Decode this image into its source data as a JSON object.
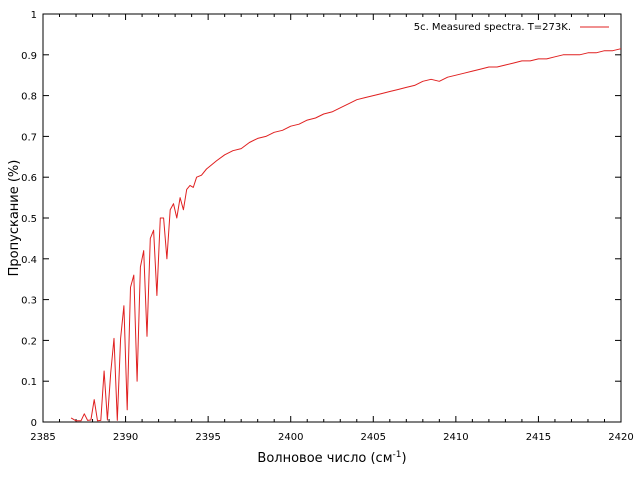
{
  "chart_data": {
    "type": "line",
    "xlabel": "Волновое число (см",
    "xlabel_sup": "-1",
    "xlabel_tail": ")",
    "ylabel": "Пропускание (%)",
    "xlim": [
      2385,
      2420
    ],
    "ylim": [
      0,
      1
    ],
    "xticks": [
      "2385",
      "2390",
      "2395",
      "2400",
      "2405",
      "2410",
      "2415",
      "2420"
    ],
    "yticks": [
      "0",
      "0.1",
      "0.2",
      "0.3",
      "0.4",
      "0.5",
      "0.6",
      "0.7",
      "0.8",
      "0.9",
      "1"
    ],
    "grid": false,
    "legend_position": "top-right",
    "series": [
      {
        "name": "5c. Measured spectra. T=273K.",
        "color": "#e02020",
        "x": [
          2386.7,
          2387.0,
          2387.3,
          2387.5,
          2387.7,
          2387.9,
          2388.1,
          2388.3,
          2388.5,
          2388.7,
          2388.9,
          2389.1,
          2389.3,
          2389.5,
          2389.7,
          2389.9,
          2390.1,
          2390.3,
          2390.5,
          2390.7,
          2390.9,
          2391.1,
          2391.3,
          2391.5,
          2391.7,
          2391.9,
          2392.1,
          2392.3,
          2392.5,
          2392.7,
          2392.9,
          2393.1,
          2393.3,
          2393.5,
          2393.7,
          2393.9,
          2394.1,
          2394.3,
          2394.6,
          2394.9,
          2395.2,
          2395.5,
          2396.0,
          2396.5,
          2397.0,
          2397.5,
          2398.0,
          2398.5,
          2399.0,
          2399.5,
          2400.0,
          2400.5,
          2401.0,
          2401.5,
          2402.0,
          2402.5,
          2403.0,
          2403.5,
          2404.0,
          2404.5,
          2405.0,
          2405.5,
          2406.0,
          2406.5,
          2407.0,
          2407.5,
          2408.0,
          2408.5,
          2409.0,
          2409.5,
          2410.0,
          2410.5,
          2411.0,
          2411.5,
          2412.0,
          2412.5,
          2413.0,
          2413.5,
          2414.0,
          2414.5,
          2415.0,
          2415.5,
          2416.0,
          2416.5,
          2417.0,
          2417.5,
          2418.0,
          2418.5,
          2419.0,
          2419.5,
          2420.0
        ],
        "y": [
          0.01,
          0.003,
          0.003,
          0.02,
          0.004,
          0.005,
          0.055,
          0.003,
          0.004,
          0.125,
          0.005,
          0.12,
          0.205,
          0.004,
          0.205,
          0.285,
          0.03,
          0.33,
          0.36,
          0.1,
          0.38,
          0.42,
          0.21,
          0.45,
          0.47,
          0.31,
          0.5,
          0.5,
          0.4,
          0.52,
          0.535,
          0.5,
          0.55,
          0.52,
          0.57,
          0.58,
          0.575,
          0.6,
          0.605,
          0.62,
          0.63,
          0.64,
          0.655,
          0.665,
          0.67,
          0.685,
          0.695,
          0.7,
          0.71,
          0.715,
          0.725,
          0.73,
          0.74,
          0.745,
          0.755,
          0.76,
          0.77,
          0.78,
          0.79,
          0.795,
          0.8,
          0.805,
          0.81,
          0.815,
          0.82,
          0.825,
          0.835,
          0.84,
          0.835,
          0.845,
          0.85,
          0.855,
          0.86,
          0.865,
          0.87,
          0.87,
          0.875,
          0.88,
          0.885,
          0.885,
          0.89,
          0.89,
          0.895,
          0.9,
          0.9,
          0.9,
          0.905,
          0.905,
          0.91,
          0.91,
          0.915
        ]
      }
    ]
  }
}
